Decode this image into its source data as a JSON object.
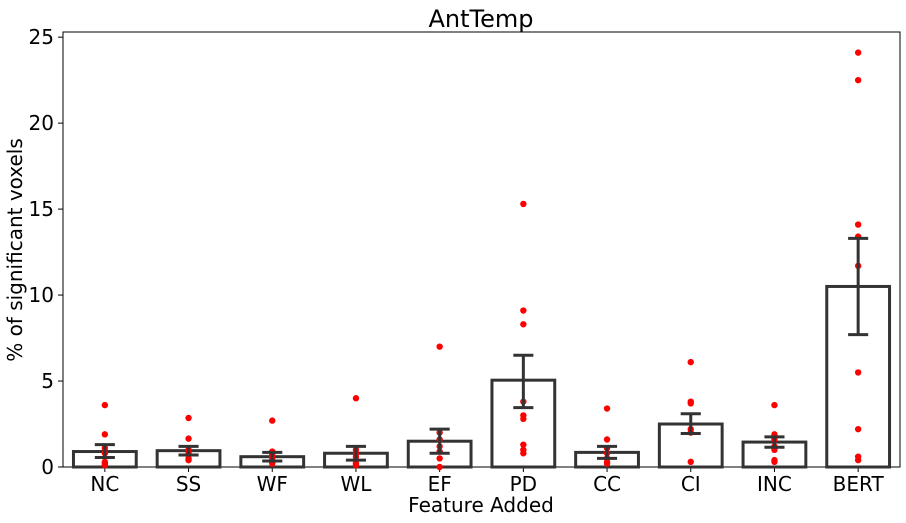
{
  "chart_data": {
    "type": "bar",
    "title": "AntTemp",
    "xlabel": "Feature Added",
    "ylabel": "% of significant voxels",
    "categories": [
      "NC",
      "SS",
      "WF",
      "WL",
      "EF",
      "PD",
      "CC",
      "CI",
      "INC",
      "BERT"
    ],
    "values": [
      0.9,
      0.95,
      0.6,
      0.8,
      1.5,
      5.05,
      0.85,
      2.5,
      1.45,
      10.5
    ],
    "error_low": [
      0.55,
      0.7,
      0.35,
      0.4,
      0.8,
      3.45,
      0.5,
      1.95,
      1.15,
      7.7
    ],
    "error_high": [
      1.3,
      1.2,
      0.85,
      1.2,
      2.2,
      6.5,
      1.2,
      3.1,
      1.75,
      13.3
    ],
    "points": [
      [
        3.6,
        1.9,
        1.1,
        0.8,
        0.3,
        0.2,
        0.1
      ],
      [
        2.85,
        1.65,
        1.0,
        0.85,
        0.7,
        0.5,
        0.4
      ],
      [
        2.7,
        0.9,
        0.7,
        0.55,
        0.4,
        0.3,
        0.2
      ],
      [
        4.0,
        1.0,
        0.8,
        0.6,
        0.4,
        0.2,
        0.1
      ],
      [
        7.0,
        2.0,
        1.6,
        1.2,
        0.9,
        0.5,
        0.0
      ],
      [
        15.3,
        9.1,
        8.3,
        3.8,
        3.0,
        2.8,
        1.3,
        1.0,
        0.8
      ],
      [
        3.4,
        1.6,
        1.1,
        0.8,
        0.5,
        0.3,
        0.2
      ],
      [
        6.1,
        3.8,
        3.7,
        2.2,
        2.0,
        0.3
      ],
      [
        3.6,
        1.9,
        1.6,
        1.2,
        1.0,
        0.4,
        0.3
      ],
      [
        24.1,
        22.5,
        14.1,
        13.4,
        11.7,
        5.5,
        2.2,
        0.6,
        0.4
      ]
    ],
    "yticks": [
      0,
      5,
      10,
      15,
      20,
      25
    ],
    "ylim": [
      0,
      25.3
    ],
    "grid": false,
    "bar_fill": "#ffffff",
    "bar_edge": "#333333",
    "errorbar_color": "#333333",
    "point_color": "#ff0000"
  }
}
